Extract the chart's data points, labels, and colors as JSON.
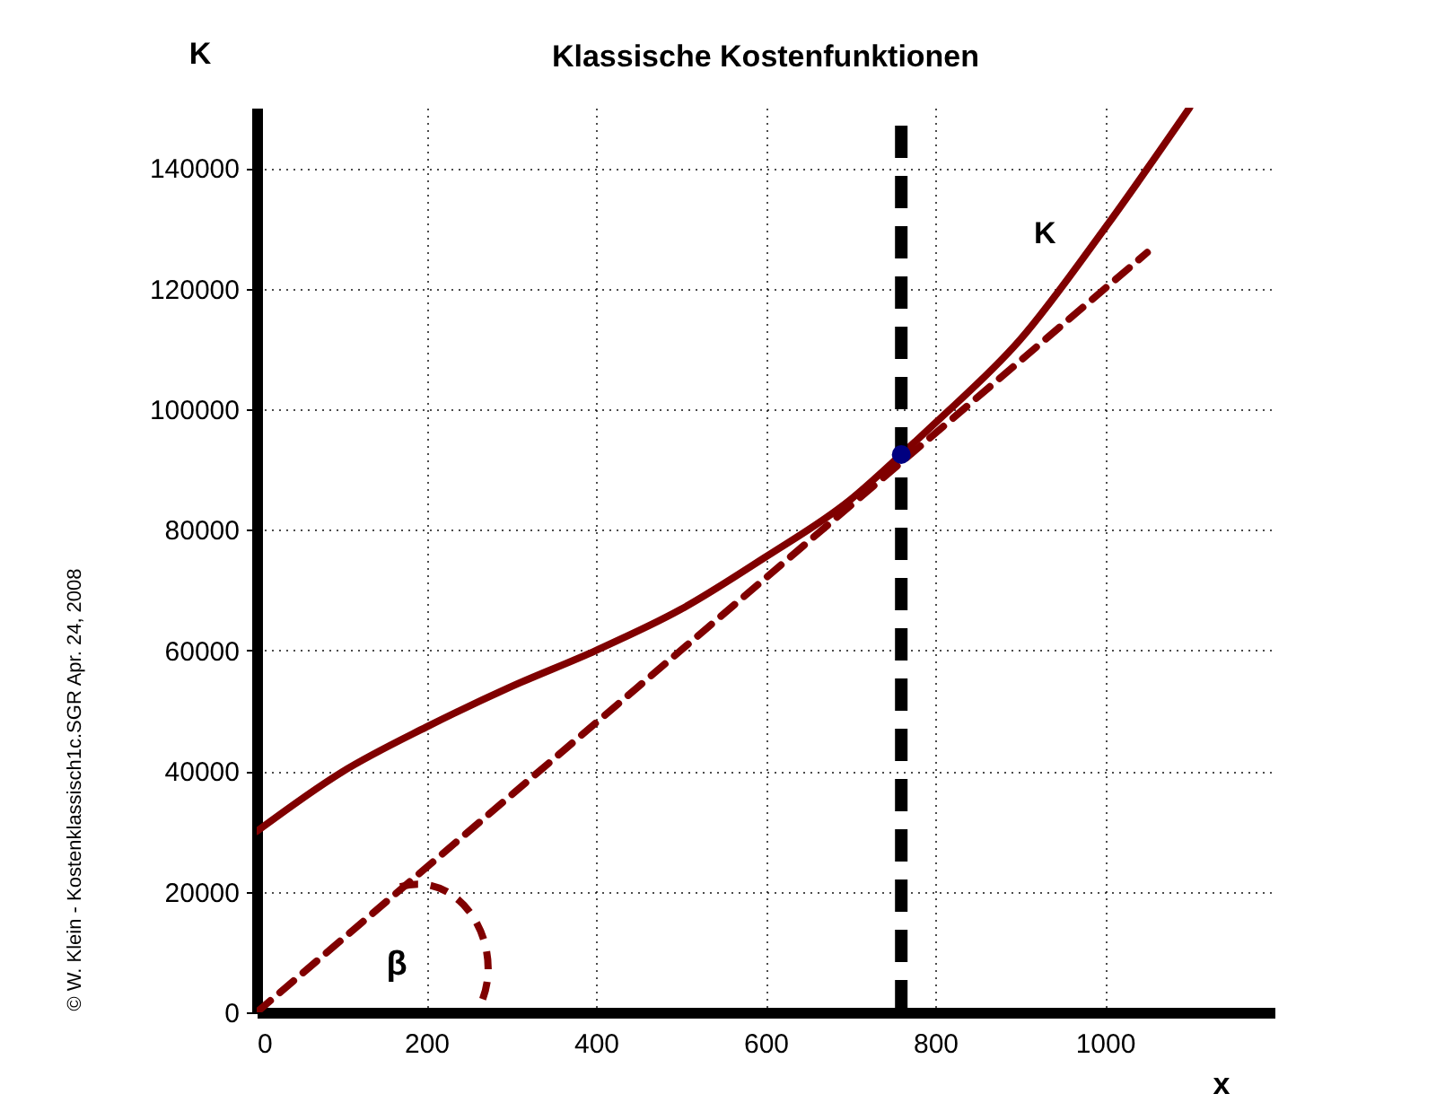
{
  "chart_data": {
    "type": "line",
    "title": "Klassische Kostenfunktionen",
    "xlabel": "x",
    "ylabel": "K",
    "xlim": [
      0,
      1200
    ],
    "xticks": [
      0,
      200,
      400,
      600,
      800,
      1000
    ],
    "ylim": [
      0,
      150000
    ],
    "yticks": [
      0,
      20000,
      40000,
      60000,
      80000,
      100000,
      120000,
      140000
    ],
    "grid": true,
    "legend": false,
    "series": [
      {
        "name": "K",
        "type": "line",
        "color": "#800000",
        "line_style": "solid",
        "x": [
          0,
          100,
          200,
          300,
          400,
          500,
          600,
          700,
          760,
          800,
          900,
          1000,
          1100
        ],
        "values": [
          30000,
          39800,
          47300,
          54000,
          60000,
          66800,
          75500,
          85000,
          92500,
          97700,
          111500,
          130000,
          150000
        ]
      },
      {
        "type": "line",
        "color": "#800000",
        "line_style": "dashed",
        "x": [
          0,
          1050
        ],
        "values": [
          0,
          126000
        ]
      },
      {
        "type": "scatter",
        "color": "#000080",
        "marker": "circle",
        "x": [
          760
        ],
        "values": [
          92500
        ]
      }
    ],
    "ref_lines": [
      {
        "axis": "x",
        "value": 760,
        "color": "#000000",
        "line_style": "dashed"
      }
    ],
    "annotations": [
      "β",
      "© W. Klein - Kostenklassisch1c.SGR  Apr. 24, 2008"
    ]
  }
}
